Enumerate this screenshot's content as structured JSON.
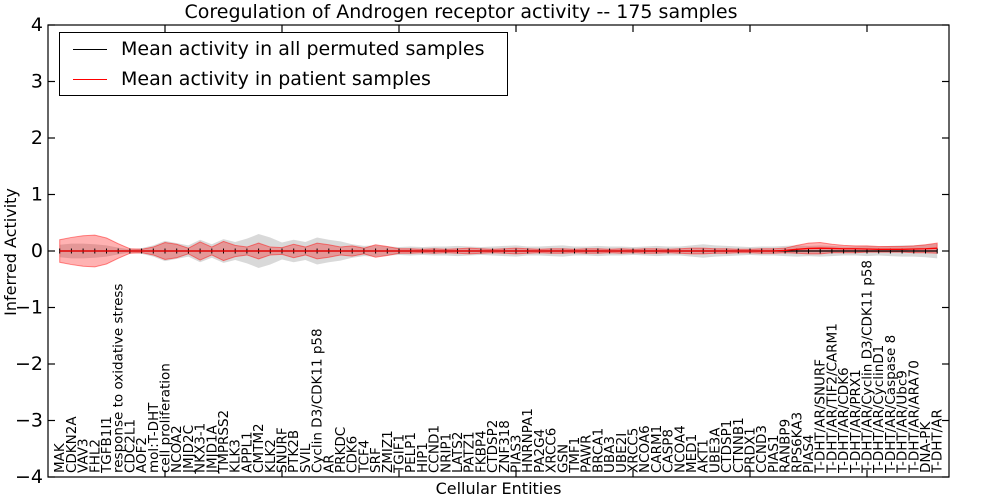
{
  "title": "Coregulation of Androgen receptor activity -- 175 samples",
  "axes": {
    "x_label": "Cellular Entities",
    "y_label": "Inferred Activity",
    "y_tick_labels": [
      "4",
      "3",
      "2",
      "1",
      "0",
      "−1",
      "−2",
      "−3",
      "−4"
    ],
    "y_tick_values": [
      4,
      3,
      2,
      1,
      0,
      -1,
      -2,
      -3,
      -4
    ]
  },
  "legend": [
    {
      "label": "Mean activity in all permuted samples",
      "color": "#000000"
    },
    {
      "label": "Mean activity in patient samples",
      "color": "#ff0000"
    }
  ],
  "chart_data": {
    "type": "line",
    "title": "Coregulation of Androgen receptor activity -- 175 samples",
    "xlabel": "Cellular Entities",
    "ylabel": "Inferred Activity",
    "ylim": [
      -4,
      4
    ],
    "xlim": [
      -1,
      76
    ],
    "grid": false,
    "legend_position": "upper left",
    "x_major_tick_indices": [
      9,
      19,
      29,
      39,
      49,
      59,
      69
    ],
    "categories": [
      "MAK",
      "CDKN2A",
      "VAV3",
      "FHL2",
      "TGFB1I1",
      "response to oxidative stress",
      "CDC2L1",
      "AOF2",
      "mol:T-DHT",
      "cell proliferation",
      "NCOA2",
      "JMJD2C",
      "NKX3-1",
      "JMJD1A",
      "TMPRSS2",
      "KLK3",
      "APPL1",
      "CMTM2",
      "KLK2",
      "SNURF",
      "PTK2B",
      "SVIL",
      "Cyclin D3/CDK11 p58",
      "AR",
      "PRKDC",
      "CDK6",
      "TCF4",
      "SRF",
      "ZMIZ1",
      "TGIF1",
      "PELP1",
      "HIP1",
      "CCND1",
      "NRIP1",
      "LATS2",
      "PATZ1",
      "FKBP4",
      "CTDSP2",
      "ZNF318",
      "PIAS3",
      "HNRNPA1",
      "PA2G4",
      "XRCC6",
      "GSN",
      "TMF1",
      "PAWR",
      "BRCA1",
      "UBA3",
      "UBE2I",
      "XRCC5",
      "NCOA6",
      "CARM1",
      "CASP8",
      "NCOA4",
      "MED1",
      "AKT1",
      "UBE3A",
      "CTDSP1",
      "CTNNB1",
      "PRDX1",
      "CCND3",
      "PIAS1",
      "RANBP9",
      "RPS6KA3",
      "PIAS4",
      "T-DHT/AR/SNURF",
      "T-DHT/AR/TIF2/CARM1",
      "T-DHT/AR/CDK6",
      "T-DHT/AR/PRX1",
      "T-DHT/AR/Cyclin D3/CDK11 p58",
      "T-DHT/AR/CyclinD1",
      "T-DHT/AR/Caspase 8",
      "T-DHT/AR/Ubc9",
      "T-DHT/AR/ARA70",
      "DNA-PK",
      "T-DHT/AR"
    ],
    "series": [
      {
        "name": "Mean activity in all permuted samples",
        "color": "#000000",
        "marker": "vertical-dash",
        "values_constant": 0,
        "band_color": "rgba(0,0,0,0.15)",
        "band_half_width": [
          0.11,
          0.13,
          0.13,
          0.12,
          0.1,
          0.06,
          0.03,
          0.05,
          0.1,
          0.18,
          0.14,
          0.1,
          0.2,
          0.12,
          0.21,
          0.16,
          0.22,
          0.3,
          0.24,
          0.15,
          0.2,
          0.16,
          0.24,
          0.2,
          0.17,
          0.12,
          0.09,
          0.1,
          0.08,
          0.07,
          0.08,
          0.07,
          0.08,
          0.08,
          0.09,
          0.08,
          0.07,
          0.08,
          0.09,
          0.1,
          0.08,
          0.08,
          0.09,
          0.1,
          0.08,
          0.08,
          0.09,
          0.08,
          0.08,
          0.07,
          0.08,
          0.09,
          0.08,
          0.08,
          0.1,
          0.12,
          0.1,
          0.09,
          0.08,
          0.07,
          0.08,
          0.08,
          0.09,
          0.1,
          0.09,
          0.1,
          0.09,
          0.08,
          0.08,
          0.09,
          0.08,
          0.09,
          0.1,
          0.1,
          0.11,
          0.13
        ]
      },
      {
        "name": "Mean activity in patient samples",
        "color": "#ff0000",
        "marker": "none",
        "values": [
          0,
          0,
          0,
          0,
          0,
          0,
          0,
          0,
          0,
          0,
          0,
          0,
          0,
          0,
          0,
          0,
          0,
          0,
          0,
          0,
          0,
          0,
          0,
          0,
          0,
          0,
          0,
          0,
          0,
          0,
          0,
          0,
          0,
          0,
          0,
          0,
          0,
          0,
          0,
          0,
          0,
          0,
          0,
          0,
          0,
          0,
          0,
          0,
          0,
          0,
          0,
          0,
          0,
          0,
          0,
          0,
          0,
          0,
          0,
          0,
          0,
          0,
          0.01,
          0.03,
          0.045,
          0.05,
          0.045,
          0.04,
          0.04,
          0.035,
          0.03,
          0.03,
          0.03,
          0.035,
          0.04,
          0.05
        ],
        "band_color": "rgba(255,0,0,0.30)",
        "band_edge_color": "rgba(255,0,0,0.45)",
        "band_upper": [
          0.2,
          0.24,
          0.27,
          0.28,
          0.23,
          0.13,
          0.04,
          0.03,
          0.07,
          0.15,
          0.12,
          0.05,
          0.16,
          0.07,
          0.17,
          0.1,
          0.07,
          0.14,
          0.07,
          0.06,
          0.12,
          0.07,
          0.14,
          0.11,
          0.07,
          0.09,
          0.05,
          0.11,
          0.08,
          0.04,
          0.04,
          0.03,
          0.04,
          0.03,
          0.04,
          0.05,
          0.04,
          0.03,
          0.04,
          0.05,
          0.04,
          0.03,
          0.04,
          0.04,
          0.03,
          0.04,
          0.04,
          0.03,
          0.04,
          0.03,
          0.04,
          0.04,
          0.03,
          0.04,
          0.05,
          0.05,
          0.04,
          0.04,
          0.03,
          0.03,
          0.04,
          0.04,
          0.05,
          0.1,
          0.14,
          0.15,
          0.12,
          0.1,
          0.09,
          0.09,
          0.08,
          0.08,
          0.08,
          0.09,
          0.11,
          0.14
        ],
        "band_lower": [
          -0.2,
          -0.24,
          -0.27,
          -0.28,
          -0.23,
          -0.13,
          -0.04,
          -0.03,
          -0.07,
          -0.15,
          -0.12,
          -0.05,
          -0.16,
          -0.07,
          -0.17,
          -0.1,
          -0.07,
          -0.14,
          -0.07,
          -0.06,
          -0.12,
          -0.07,
          -0.14,
          -0.11,
          -0.07,
          -0.09,
          -0.05,
          -0.11,
          -0.08,
          -0.04,
          -0.04,
          -0.03,
          -0.04,
          -0.03,
          -0.04,
          -0.05,
          -0.04,
          -0.03,
          -0.04,
          -0.05,
          -0.04,
          -0.03,
          -0.04,
          -0.04,
          -0.03,
          -0.04,
          -0.04,
          -0.03,
          -0.04,
          -0.03,
          -0.04,
          -0.04,
          -0.03,
          -0.04,
          -0.05,
          -0.05,
          -0.04,
          -0.04,
          -0.03,
          -0.03,
          -0.04,
          -0.04,
          -0.03,
          -0.04,
          -0.05,
          -0.05,
          -0.03,
          -0.03,
          -0.03,
          -0.02,
          -0.02,
          -0.02,
          -0.02,
          -0.03,
          -0.03,
          -0.04
        ]
      }
    ]
  }
}
